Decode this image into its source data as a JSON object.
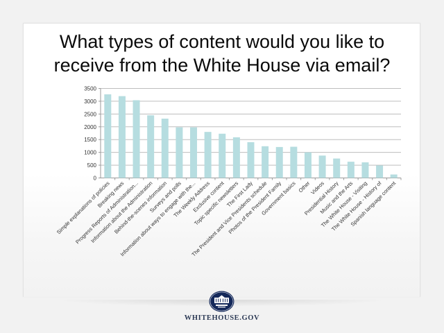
{
  "slide": {
    "title_line1": "What types of content would you like to",
    "title_line2": "receive from the White House via email?",
    "footer_text": "WHITEHOUSE.GOV",
    "logo_icon": "white-house-seal-icon"
  },
  "colors": {
    "background": "#f2f2f2",
    "card": "#ffffff",
    "bar": "#b6dde0",
    "gridline": "#bdbdbd",
    "axis_text": "#333333",
    "logo_navy": "#14285a",
    "footer_text": "#2c3a55"
  },
  "chart_data": {
    "type": "bar",
    "title": "What types of content would you like to receive from the White House via email?",
    "xlabel": "",
    "ylabel": "",
    "ylim": [
      0,
      3500
    ],
    "yticks": [
      0,
      500,
      1000,
      1500,
      2000,
      2500,
      3000,
      3500
    ],
    "grid": true,
    "legend": null,
    "categories": [
      "Simple explanations of policies",
      "Breaking news",
      "Progress Reports of Administration...",
      "Information about the Administration",
      "Behind-the-scenes information",
      "Surveys and polls",
      "Information about ways to engage with the...",
      "The Weekly Address",
      "Exclusive content",
      "Topic specific newsletters",
      "The First Lady",
      "The President and Vice Presidents schedule",
      "Photos of the President Family",
      "Government basics",
      "Other",
      "Videos",
      "Presidential History",
      "Music and the Arts",
      "The White House - Visiting",
      "The White House - History of",
      "Spanish language content"
    ],
    "values": [
      3270,
      3200,
      3040,
      2450,
      2320,
      1980,
      1980,
      1800,
      1730,
      1590,
      1400,
      1240,
      1210,
      1220,
      1000,
      875,
      760,
      635,
      610,
      490,
      135
    ]
  }
}
